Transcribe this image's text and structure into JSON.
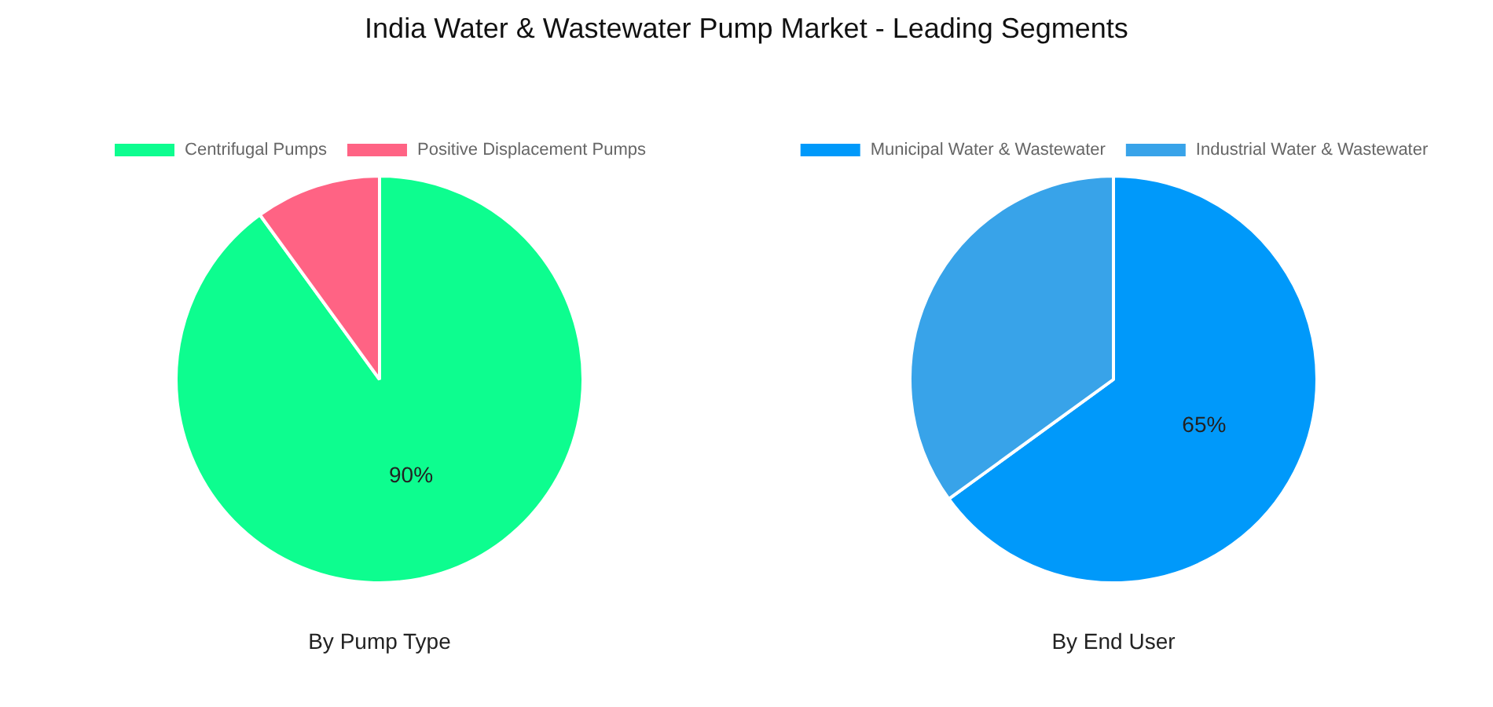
{
  "chart_data": [
    {
      "type": "pie",
      "title": "India Water & Wastewater Pump Market - Leading Segments",
      "xlabel": "By Pump Type",
      "categories": [
        "Centrifugal Pumps",
        "Positive Displacement Pumps"
      ],
      "values": [
        90,
        10
      ],
      "colors": [
        "#0dfd8f",
        "#ff6384"
      ],
      "value_labels": [
        "90%",
        null
      ],
      "legend": "top"
    },
    {
      "type": "pie",
      "xlabel": "By End User",
      "categories": [
        "Municipal Water & Wastewater",
        "Industrial Water & Wastewater"
      ],
      "values": [
        65,
        35
      ],
      "colors": [
        "#0099fa",
        "#38a3e9"
      ],
      "value_labels": [
        "65%",
        null
      ],
      "legend": "top"
    }
  ]
}
